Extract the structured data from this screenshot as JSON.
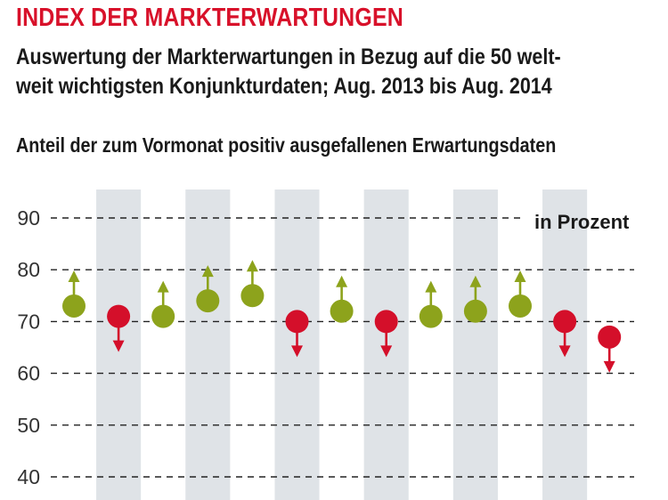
{
  "header": {
    "title": "INDEX DER MARKTERWARTUNGEN",
    "subtitle_line1": "Auswertung der Markterwartungen in Bezug auf die 50 welt-",
    "subtitle_line2": "weit wichtigsten Konjunkturdaten; Aug. 2013 bis Aug. 2014",
    "measure_label": "Anteil der zum Vormonat positiv ausgefallenen Erwartungsdaten"
  },
  "chart_data": {
    "type": "scatter",
    "unit_label": "in Prozent",
    "ylim": [
      40,
      90
    ],
    "yticks": [
      40,
      50,
      60,
      70,
      80,
      90
    ],
    "grid": true,
    "points": [
      {
        "value": 73,
        "direction": "up"
      },
      {
        "value": 71,
        "direction": "down"
      },
      {
        "value": 71,
        "direction": "up"
      },
      {
        "value": 74,
        "direction": "up"
      },
      {
        "value": 75,
        "direction": "up"
      },
      {
        "value": 70,
        "direction": "down"
      },
      {
        "value": 72,
        "direction": "up"
      },
      {
        "value": 70,
        "direction": "down"
      },
      {
        "value": 71,
        "direction": "up"
      },
      {
        "value": 72,
        "direction": "up"
      },
      {
        "value": 73,
        "direction": "up"
      },
      {
        "value": 70,
        "direction": "down"
      },
      {
        "value": 67,
        "direction": "down"
      }
    ],
    "colors": {
      "up": "#8da31c",
      "down": "#d40f2a",
      "band": "#dfe3e7",
      "grid": "#222222",
      "ticks": "#333333"
    }
  }
}
